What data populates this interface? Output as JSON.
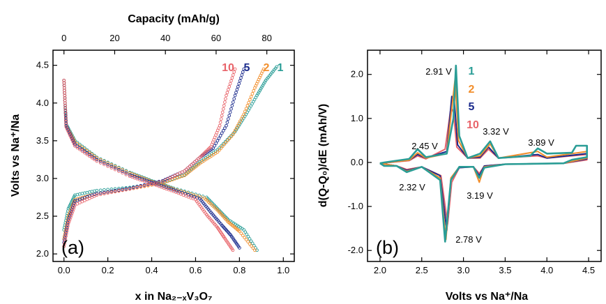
{
  "colors": {
    "cycle_1": "#2a9d96",
    "cycle_2": "#f28e2b",
    "cycle_5": "#1a2a8c",
    "cycle_10": "#e8646a"
  },
  "chart_data": [
    {
      "panel": "(a)",
      "type": "scatter",
      "xlabel": "x in Na₂₋ₓV₃O₇",
      "x_top_label": "Capacity (mAh/g)",
      "ylabel": "Volts vs Na⁺/Na",
      "xlim": [
        -0.05,
        1.05
      ],
      "ylim": [
        1.9,
        4.7
      ],
      "x_ticks": [
        "0.0",
        "0.2",
        "0.4",
        "0.6",
        "0.8",
        "1.0"
      ],
      "x_top_ticks": [
        "0",
        "20",
        "40",
        "60",
        "80"
      ],
      "y_ticks": [
        "2.0",
        "2.5",
        "3.0",
        "3.5",
        "4.0",
        "4.5"
      ],
      "cycle_labels": [
        "10",
        "5",
        "2",
        "1"
      ],
      "series": [
        {
          "name": "1",
          "color": "#2a9d96",
          "charge": [
            [
              0.0,
              2.32
            ],
            [
              0.02,
              2.6
            ],
            [
              0.05,
              2.78
            ],
            [
              0.15,
              2.84
            ],
            [
              0.3,
              2.88
            ],
            [
              0.45,
              2.95
            ],
            [
              0.55,
              3.05
            ],
            [
              0.62,
              3.22
            ],
            [
              0.7,
              3.38
            ],
            [
              0.78,
              3.62
            ],
            [
              0.83,
              3.85
            ],
            [
              0.88,
              4.1
            ],
            [
              0.92,
              4.3
            ],
            [
              0.97,
              4.48
            ]
          ],
          "discharge": [
            [
              0.0,
              4.3
            ],
            [
              0.005,
              4.0
            ],
            [
              0.01,
              3.72
            ],
            [
              0.05,
              3.5
            ],
            [
              0.15,
              3.28
            ],
            [
              0.3,
              3.08
            ],
            [
              0.4,
              2.97
            ],
            [
              0.5,
              2.87
            ],
            [
              0.65,
              2.75
            ],
            [
              0.7,
              2.6
            ],
            [
              0.75,
              2.45
            ],
            [
              0.82,
              2.32
            ],
            [
              0.88,
              2.05
            ]
          ]
        },
        {
          "name": "2",
          "color": "#f28e2b",
          "charge": [
            [
              0.0,
              2.2
            ],
            [
              0.02,
              2.5
            ],
            [
              0.05,
              2.72
            ],
            [
              0.15,
              2.8
            ],
            [
              0.3,
              2.86
            ],
            [
              0.45,
              2.94
            ],
            [
              0.55,
              3.04
            ],
            [
              0.62,
              3.2
            ],
            [
              0.7,
              3.35
            ],
            [
              0.77,
              3.58
            ],
            [
              0.82,
              3.85
            ],
            [
              0.87,
              4.2
            ],
            [
              0.91,
              4.45
            ]
          ],
          "discharge": [
            [
              0.0,
              4.3
            ],
            [
              0.005,
              4.0
            ],
            [
              0.01,
              3.7
            ],
            [
              0.05,
              3.48
            ],
            [
              0.15,
              3.27
            ],
            [
              0.3,
              3.07
            ],
            [
              0.4,
              2.96
            ],
            [
              0.5,
              2.86
            ],
            [
              0.64,
              2.74
            ],
            [
              0.7,
              2.58
            ],
            [
              0.75,
              2.42
            ],
            [
              0.8,
              2.3
            ],
            [
              0.87,
              2.05
            ]
          ]
        },
        {
          "name": "5",
          "color": "#1a2a8c",
          "charge": [
            [
              0.0,
              2.15
            ],
            [
              0.02,
              2.45
            ],
            [
              0.05,
              2.7
            ],
            [
              0.15,
              2.8
            ],
            [
              0.3,
              2.87
            ],
            [
              0.45,
              2.97
            ],
            [
              0.55,
              3.1
            ],
            [
              0.62,
              3.28
            ],
            [
              0.68,
              3.4
            ],
            [
              0.74,
              3.7
            ],
            [
              0.78,
              4.1
            ],
            [
              0.82,
              4.45
            ]
          ],
          "discharge": [
            [
              0.0,
              4.3
            ],
            [
              0.005,
              4.0
            ],
            [
              0.01,
              3.7
            ],
            [
              0.05,
              3.45
            ],
            [
              0.15,
              3.25
            ],
            [
              0.3,
              3.05
            ],
            [
              0.4,
              2.95
            ],
            [
              0.5,
              2.85
            ],
            [
              0.62,
              2.73
            ],
            [
              0.67,
              2.55
            ],
            [
              0.72,
              2.38
            ],
            [
              0.76,
              2.25
            ],
            [
              0.8,
              2.08
            ]
          ]
        },
        {
          "name": "10",
          "color": "#e8646a",
          "charge": [
            [
              0.0,
              2.1
            ],
            [
              0.02,
              2.4
            ],
            [
              0.05,
              2.65
            ],
            [
              0.15,
              2.78
            ],
            [
              0.3,
              2.86
            ],
            [
              0.45,
              2.96
            ],
            [
              0.55,
              3.1
            ],
            [
              0.62,
              3.28
            ],
            [
              0.67,
              3.42
            ],
            [
              0.71,
              3.7
            ],
            [
              0.74,
              4.1
            ],
            [
              0.78,
              4.45
            ]
          ],
          "discharge": [
            [
              0.0,
              4.3
            ],
            [
              0.005,
              4.0
            ],
            [
              0.01,
              3.68
            ],
            [
              0.05,
              3.43
            ],
            [
              0.15,
              3.23
            ],
            [
              0.3,
              3.03
            ],
            [
              0.4,
              2.93
            ],
            [
              0.5,
              2.83
            ],
            [
              0.6,
              2.72
            ],
            [
              0.65,
              2.52
            ],
            [
              0.7,
              2.35
            ],
            [
              0.73,
              2.22
            ],
            [
              0.77,
              2.05
            ]
          ]
        }
      ]
    },
    {
      "panel": "(b)",
      "type": "line",
      "xlabel": "Volts vs Na⁺/Na",
      "ylabel": "d(Q-Q₀)/dE (mAh/V)",
      "xlim": [
        1.85,
        4.65
      ],
      "ylim": [
        -2.25,
        2.55
      ],
      "x_ticks": [
        "2.0",
        "2.5",
        "3.0",
        "3.5",
        "4.0",
        "4.5"
      ],
      "y_ticks": [
        "-2.0",
        "-1.0",
        "0.0",
        "1.0",
        "2.0"
      ],
      "cycle_labels": [
        "1",
        "2",
        "5",
        "10"
      ],
      "annotations": [
        "2.91 V",
        "2.45 V",
        "3.32 V",
        "3.89 V",
        "2.32 V",
        "3.19 V",
        "2.78 V"
      ],
      "series": [
        {
          "name": "1",
          "color": "#2a9d96",
          "oxidation": [
            [
              2.0,
              -0.02
            ],
            [
              2.05,
              0.0
            ],
            [
              2.35,
              0.08
            ],
            [
              2.45,
              0.3
            ],
            [
              2.55,
              0.12
            ],
            [
              2.8,
              0.2
            ],
            [
              2.88,
              1.0
            ],
            [
              2.91,
              2.2
            ],
            [
              2.95,
              0.6
            ],
            [
              3.05,
              0.1
            ],
            [
              3.2,
              0.2
            ],
            [
              3.32,
              0.48
            ],
            [
              3.42,
              0.1
            ],
            [
              3.8,
              0.15
            ],
            [
              3.89,
              0.32
            ],
            [
              4.0,
              0.2
            ],
            [
              4.3,
              0.22
            ],
            [
              4.35,
              0.38
            ],
            [
              4.48,
              0.38
            ],
            [
              4.48,
              0.12
            ]
          ],
          "reduction": [
            [
              4.48,
              0.12
            ],
            [
              4.3,
              0.06
            ],
            [
              4.2,
              -0.02
            ],
            [
              3.5,
              -0.04
            ],
            [
              3.25,
              -0.12
            ],
            [
              3.19,
              -0.35
            ],
            [
              3.12,
              -0.1
            ],
            [
              2.95,
              -0.1
            ],
            [
              2.85,
              -0.4
            ],
            [
              2.78,
              -1.8
            ],
            [
              2.72,
              -0.4
            ],
            [
              2.5,
              -0.1
            ],
            [
              2.32,
              -0.22
            ],
            [
              2.2,
              -0.08
            ],
            [
              2.05,
              -0.08
            ],
            [
              2.0,
              -0.02
            ]
          ]
        },
        {
          "name": "2",
          "color": "#f28e2b",
          "oxidation": [
            [
              2.0,
              -0.02
            ],
            [
              2.35,
              0.05
            ],
            [
              2.45,
              0.22
            ],
            [
              2.55,
              0.1
            ],
            [
              2.8,
              0.2
            ],
            [
              2.87,
              1.4
            ],
            [
              2.9,
              1.9
            ],
            [
              2.94,
              0.5
            ],
            [
              3.05,
              0.1
            ],
            [
              3.2,
              0.15
            ],
            [
              3.32,
              0.42
            ],
            [
              3.42,
              0.1
            ],
            [
              3.89,
              0.25
            ],
            [
              4.0,
              0.12
            ],
            [
              4.48,
              0.25
            ],
            [
              4.48,
              0.1
            ]
          ],
          "reduction": [
            [
              4.48,
              0.1
            ],
            [
              4.2,
              -0.02
            ],
            [
              3.5,
              -0.04
            ],
            [
              3.25,
              -0.1
            ],
            [
              3.19,
              -0.45
            ],
            [
              3.12,
              -0.1
            ],
            [
              2.95,
              -0.1
            ],
            [
              2.85,
              -0.35
            ],
            [
              2.79,
              -1.75
            ],
            [
              2.72,
              -0.35
            ],
            [
              2.5,
              -0.1
            ],
            [
              2.32,
              -0.2
            ],
            [
              2.2,
              -0.08
            ],
            [
              2.0,
              -0.02
            ]
          ]
        },
        {
          "name": "5",
          "color": "#1a2a8c",
          "oxidation": [
            [
              2.0,
              -0.02
            ],
            [
              2.35,
              0.05
            ],
            [
              2.45,
              0.18
            ],
            [
              2.55,
              0.1
            ],
            [
              2.8,
              0.25
            ],
            [
              2.86,
              1.5
            ],
            [
              2.89,
              1.4
            ],
            [
              2.93,
              0.4
            ],
            [
              3.05,
              0.1
            ],
            [
              3.2,
              0.12
            ],
            [
              3.3,
              0.35
            ],
            [
              3.42,
              0.1
            ],
            [
              3.89,
              0.18
            ],
            [
              4.0,
              0.1
            ],
            [
              4.48,
              0.2
            ],
            [
              4.48,
              0.08
            ]
          ],
          "reduction": [
            [
              4.48,
              0.08
            ],
            [
              4.2,
              -0.02
            ],
            [
              3.5,
              -0.04
            ],
            [
              3.25,
              -0.08
            ],
            [
              3.19,
              -0.3
            ],
            [
              3.12,
              -0.1
            ],
            [
              2.95,
              -0.12
            ],
            [
              2.85,
              -0.4
            ],
            [
              2.8,
              -1.55
            ],
            [
              2.72,
              -0.3
            ],
            [
              2.5,
              -0.1
            ],
            [
              2.32,
              -0.18
            ],
            [
              2.2,
              -0.08
            ],
            [
              2.0,
              -0.02
            ]
          ]
        },
        {
          "name": "10",
          "color": "#e8646a",
          "oxidation": [
            [
              2.0,
              -0.02
            ],
            [
              2.35,
              0.04
            ],
            [
              2.45,
              0.15
            ],
            [
              2.55,
              0.08
            ],
            [
              2.78,
              0.3
            ],
            [
              2.85,
              1.25
            ],
            [
              2.88,
              1.15
            ],
            [
              2.92,
              0.35
            ],
            [
              3.05,
              0.1
            ],
            [
              3.2,
              0.1
            ],
            [
              3.3,
              0.3
            ],
            [
              3.42,
              0.1
            ],
            [
              3.89,
              0.15
            ],
            [
              4.0,
              0.1
            ],
            [
              4.48,
              0.18
            ],
            [
              4.48,
              0.06
            ]
          ],
          "reduction": [
            [
              4.48,
              0.06
            ],
            [
              4.2,
              -0.02
            ],
            [
              3.5,
              -0.04
            ],
            [
              3.25,
              -0.08
            ],
            [
              3.19,
              -0.25
            ],
            [
              3.12,
              -0.1
            ],
            [
              2.95,
              -0.12
            ],
            [
              2.86,
              -0.45
            ],
            [
              2.81,
              -1.4
            ],
            [
              2.73,
              -0.3
            ],
            [
              2.5,
              -0.1
            ],
            [
              2.32,
              -0.16
            ],
            [
              2.2,
              -0.08
            ],
            [
              2.0,
              -0.02
            ]
          ]
        }
      ]
    }
  ]
}
